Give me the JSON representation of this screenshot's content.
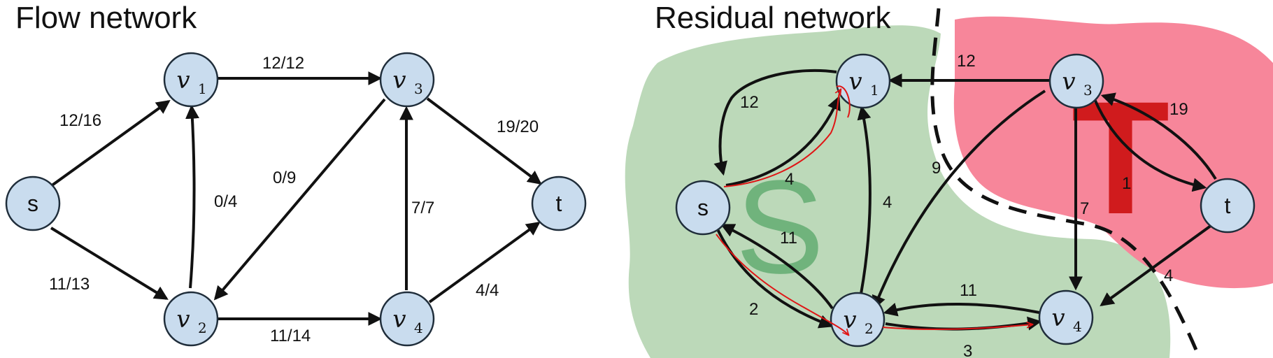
{
  "left": {
    "title": "Flow network",
    "nodes": {
      "s": {
        "label": "s"
      },
      "v1": {
        "label": "v",
        "sub": "1"
      },
      "v2": {
        "label": "v",
        "sub": "2"
      },
      "v3": {
        "label": "v",
        "sub": "3"
      },
      "v4": {
        "label": "v",
        "sub": "4"
      },
      "t": {
        "label": "t"
      }
    },
    "edges": {
      "s_v1": "12/16",
      "s_v2": "11/13",
      "v1_v3": "12/12",
      "v2_v1": "0/4",
      "v3_v2": "0/9",
      "v2_v4": "11/14",
      "v4_v3": "7/7",
      "v3_t": "19/20",
      "v4_t": "4/4"
    }
  },
  "right": {
    "title": "Residual network",
    "set_s": "S",
    "set_t": "T",
    "nodes": {
      "s": {
        "label": "s"
      },
      "v1": {
        "label": "v",
        "sub": "1"
      },
      "v2": {
        "label": "v",
        "sub": "2"
      },
      "v3": {
        "label": "v",
        "sub": "3"
      },
      "v4": {
        "label": "v",
        "sub": "4"
      },
      "t": {
        "label": "t"
      }
    },
    "edges": {
      "v1_s": "12",
      "s_v1": "4",
      "v3_v1": "12",
      "v2_v1": "4",
      "v2_s": "11",
      "s_v2": "2",
      "v3_v2": "9",
      "v4_v2": "11",
      "v2_v4": "3",
      "v3_v4": "7",
      "t_v3": "19",
      "v3_t": "1",
      "t_v4": "4"
    }
  },
  "colors": {
    "node_fill": "#c9dcee",
    "set_s_fill": "#bcd9b9",
    "set_t_fill": "#f7869a",
    "annotation": "#e01515"
  }
}
